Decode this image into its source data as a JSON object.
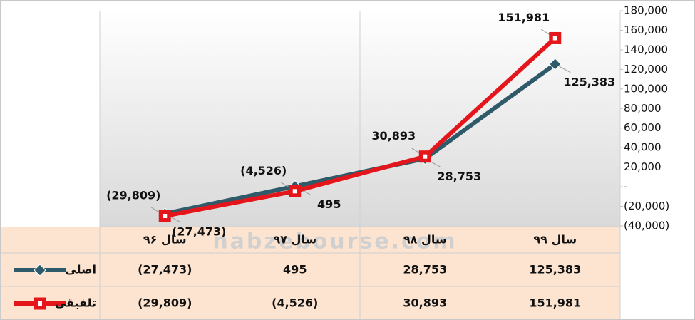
{
  "chart_data": {
    "type": "line",
    "categories": [
      "سال ۹۶",
      "سال ۹۷",
      "سال ۹۸",
      "سال ۹۹"
    ],
    "series": [
      {
        "name": "اصلی",
        "color": "#2f5a6a",
        "marker": "diamond",
        "values": [
          -27473,
          495,
          28753,
          125383
        ],
        "value_labels": [
          "(27,473)",
          "495",
          "28,753",
          "125,383"
        ]
      },
      {
        "name": "تلفیقی",
        "color": "#e5161b",
        "marker": "square",
        "values": [
          -29809,
          -4526,
          30893,
          151981
        ],
        "value_labels": [
          "(29,809)",
          "(4,526)",
          "30,893",
          "151,981"
        ]
      }
    ],
    "ylim": [
      -40000,
      180000
    ],
    "yticks": [
      {
        "value": -40000,
        "label": "(40,000)"
      },
      {
        "value": -20000,
        "label": "(20,000)"
      },
      {
        "value": 0,
        "label": "-"
      },
      {
        "value": 20000,
        "label": "20,000"
      },
      {
        "value": 40000,
        "label": "40,000"
      },
      {
        "value": 60000,
        "label": "60,000"
      },
      {
        "value": 80000,
        "label": "80,000"
      },
      {
        "value": 100000,
        "label": "100,000"
      },
      {
        "value": 120000,
        "label": "120,000"
      },
      {
        "value": 140000,
        "label": "140,000"
      },
      {
        "value": 160000,
        "label": "160,000"
      },
      {
        "value": 180000,
        "label": "180,000"
      }
    ],
    "watermark": "nabzebourse.com",
    "data_table": true
  }
}
